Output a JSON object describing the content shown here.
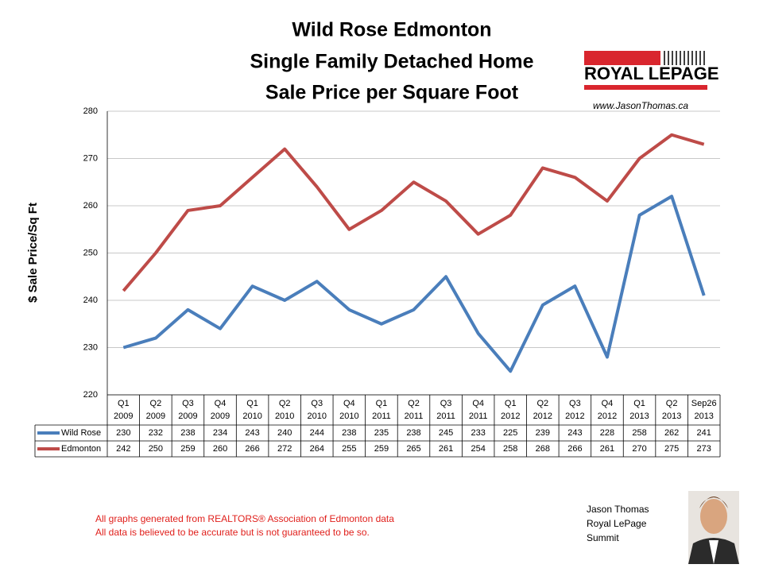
{
  "chart_data": {
    "type": "line",
    "title": [
      "Wild Rose Edmonton",
      "Single Family Detached Home",
      "Sale Price per Square Foot"
    ],
    "y_label": "$ Sale Price/Sq Ft",
    "categories": [
      [
        "Q1",
        "2009"
      ],
      [
        "Q2",
        "2009"
      ],
      [
        "Q3",
        "2009"
      ],
      [
        "Q4",
        "2009"
      ],
      [
        "Q1",
        "2010"
      ],
      [
        "Q2",
        "2010"
      ],
      [
        "Q3",
        "2010"
      ],
      [
        "Q4",
        "2010"
      ],
      [
        "Q1",
        "2011"
      ],
      [
        "Q2",
        "2011"
      ],
      [
        "Q3",
        "2011"
      ],
      [
        "Q4",
        "2011"
      ],
      [
        "Q1",
        "2012"
      ],
      [
        "Q2",
        "2012"
      ],
      [
        "Q3",
        "2012"
      ],
      [
        "Q4",
        "2012"
      ],
      [
        "Q1",
        "2013"
      ],
      [
        "Q2",
        "2013"
      ],
      [
        "Sep26",
        "2013"
      ]
    ],
    "series": [
      {
        "name": "Wild Rose",
        "color": "#4a7ebb",
        "values": [
          230,
          232,
          238,
          234,
          243,
          240,
          244,
          238,
          235,
          238,
          245,
          233,
          225,
          239,
          243,
          228,
          258,
          262,
          241
        ]
      },
      {
        "name": "Edmonton",
        "color": "#be4b48",
        "values": [
          242,
          250,
          259,
          260,
          266,
          272,
          264,
          255,
          259,
          265,
          261,
          254,
          258,
          268,
          266,
          261,
          270,
          275,
          273
        ]
      }
    ],
    "ylim": [
      220,
      280
    ],
    "yticks": [
      220,
      230,
      240,
      250,
      260,
      270,
      280
    ],
    "grid": true
  },
  "branding": {
    "logo": "ROYAL LEPAGE",
    "website": "www.JasonThomas.ca"
  },
  "notes": [
    "All graphs generated from REALTORS® Association of Edmonton data",
    "All data is believed to be accurate but is not guaranteed to be so."
  ],
  "agent": [
    "Jason Thomas",
    "Royal LePage",
    "Summit"
  ]
}
